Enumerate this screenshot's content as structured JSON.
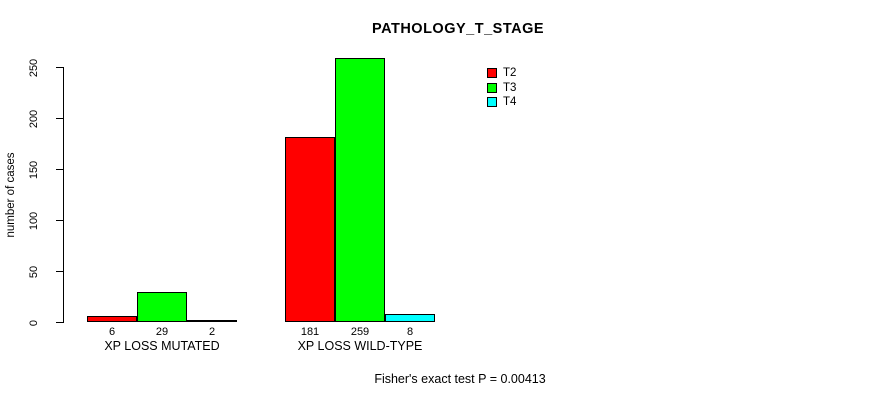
{
  "title": "PATHOLOGY_T_STAGE",
  "footnote": "Fisher's exact test P = 0.00413",
  "chart_data": {
    "type": "bar",
    "grouped": true,
    "categories": [
      "XP LOSS MUTATED",
      "XP LOSS WILD-TYPE"
    ],
    "series": [
      {
        "name": "T2",
        "color": "#FF0000",
        "values": [
          6,
          181
        ]
      },
      {
        "name": "T3",
        "color": "#00FF00",
        "values": [
          29,
          259
        ]
      },
      {
        "name": "T4",
        "color": "#00FFFF",
        "values": [
          2,
          8
        ]
      }
    ],
    "title": "PATHOLOGY_T_STAGE",
    "xlabel": "",
    "ylabel": "number of cases",
    "ylim": [
      0,
      250
    ],
    "yticks": [
      0,
      50,
      100,
      150,
      200,
      250
    ],
    "bar_value_labels": [
      [
        6,
        29,
        2
      ],
      [
        181,
        259,
        8
      ]
    ],
    "legend_position": "top-right",
    "grid": false,
    "background": "#ffffff",
    "bar_border_color": "#000000"
  }
}
